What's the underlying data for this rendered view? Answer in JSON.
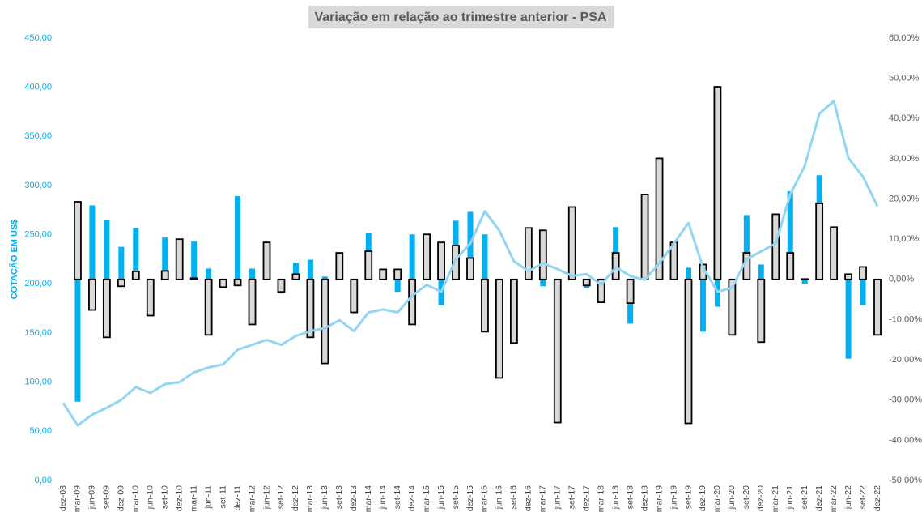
{
  "chart_data": {
    "type": "bar",
    "title": "Variação em relação ao trimestre anterior - PSA",
    "ylabel": "COTAÇÃO EM US$",
    "categories": [
      "dez-08",
      "mar-09",
      "jun-09",
      "set-09",
      "dez-09",
      "mar-10",
      "jun-10",
      "set-10",
      "dez-10",
      "mar-11",
      "jun-11",
      "set-11",
      "dez-11",
      "mar-12",
      "jun-12",
      "set-12",
      "dez-12",
      "mar-13",
      "jun-13",
      "set-13",
      "dez-13",
      "mar-14",
      "jun-14",
      "set-14",
      "dez-14",
      "mar-15",
      "jun-15",
      "set-15",
      "dez-15",
      "mar-16",
      "jun-16",
      "set-16",
      "dez-16",
      "mar-17",
      "jun-17",
      "set-17",
      "dez-17",
      "mar-18",
      "jun-18",
      "set-18",
      "dez-18",
      "mar-19",
      "jun-19",
      "set-19",
      "dez-19",
      "mar-20",
      "jun-20",
      "set-20",
      "dez-20",
      "mar-21",
      "jun-21",
      "set-21",
      "dez-21",
      "mar-22",
      "jun-22",
      "set-22",
      "dez-22"
    ],
    "series": [
      {
        "type": "bar",
        "axis": "y2",
        "color": "#00b0f0",
        "values": [
          null,
          -30.4,
          18.4,
          14.8,
          8.1,
          12.8,
          -4.5,
          10.4,
          4.7,
          9.4,
          2.7,
          -1.9,
          20.7,
          2.7,
          4.5,
          -3.5,
          4.1,
          4.9,
          0.7,
          4.7,
          -6.6,
          11.6,
          1.9,
          -3.1,
          11.2,
          5.5,
          -6.4,
          14.6,
          16.8,
          11.2,
          -7.0,
          -12.6,
          3.0,
          -1.7,
          -4.5,
          2.5,
          -2.1,
          -1.9,
          13.0,
          -11.0,
          1.0,
          7.6,
          9.2,
          2.9,
          -13.0,
          -6.8,
          -3.3,
          16.0,
          3.7,
          6.8,
          21.9,
          -1.1,
          25.9,
          4.1,
          -19.7,
          -6.4,
          -4.3
        ]
      },
      {
        "type": "bar",
        "axis": "y2",
        "color": "#d9d9d9",
        "edgecolor": "#000000",
        "values": [
          null,
          19.3,
          -7.6,
          -14.4,
          -1.7,
          2.0,
          -9.0,
          2.1,
          10.0,
          0.3,
          -13.8,
          -1.9,
          -1.5,
          -11.2,
          9.2,
          -3.1,
          1.3,
          -14.4,
          -20.9,
          6.6,
          -8.2,
          7.0,
          2.5,
          2.5,
          -11.2,
          11.2,
          9.2,
          8.4,
          5.3,
          -13.0,
          -24.5,
          -15.8,
          12.8,
          12.2,
          -35.6,
          18.0,
          -1.5,
          -5.7,
          6.6,
          -5.9,
          21.1,
          30.1,
          9.2,
          -35.8,
          3.7,
          47.9,
          -13.8,
          6.6,
          -15.6,
          16.2,
          6.6,
          0.1,
          18.9,
          13.0,
          1.3,
          3.1,
          -13.8
        ]
      },
      {
        "type": "line",
        "axis": "y",
        "color": "#92d5f3",
        "values": [
          79,
          56,
          67,
          74,
          82,
          95,
          89,
          98,
          100,
          110,
          115,
          118,
          133,
          138,
          143,
          138,
          147,
          152,
          155,
          163,
          152,
          171,
          174,
          171,
          188,
          199,
          192,
          225,
          241,
          274,
          254,
          223,
          213,
          221,
          215,
          208,
          210,
          199,
          217,
          208,
          204,
          221,
          241,
          262,
          217,
          192,
          196,
          225,
          233,
          241,
          291,
          320,
          373,
          386,
          328,
          309,
          279
        ]
      }
    ],
    "ylim": [
      0,
      450
    ],
    "yticks": [
      {
        "value": 0,
        "label": "0,00"
      },
      {
        "value": 50,
        "label": "50,00"
      },
      {
        "value": 100,
        "label": "100,00"
      },
      {
        "value": 150,
        "label": "150,00"
      },
      {
        "value": 200,
        "label": "200,00"
      },
      {
        "value": 250,
        "label": "250,00"
      },
      {
        "value": 300,
        "label": "300,00"
      },
      {
        "value": 350,
        "label": "350,00"
      },
      {
        "value": 400,
        "label": "400,00"
      },
      {
        "value": 450,
        "label": "450,00"
      }
    ],
    "y2lim": [
      -50,
      60
    ],
    "y2ticks": [
      {
        "value": -50,
        "label": "-50,00%"
      },
      {
        "value": -40,
        "label": "-40,00%"
      },
      {
        "value": -30,
        "label": "-30,00%"
      },
      {
        "value": -20,
        "label": "-20,00%"
      },
      {
        "value": -10,
        "label": "-10,00%"
      },
      {
        "value": 0,
        "label": "0,00%"
      },
      {
        "value": 10,
        "label": "10,00%"
      },
      {
        "value": 20,
        "label": "20,00%"
      },
      {
        "value": 30,
        "label": "30,00%"
      },
      {
        "value": 40,
        "label": "40,00%"
      },
      {
        "value": 50,
        "label": "50,00%"
      },
      {
        "value": 60,
        "label": "60,00%"
      }
    ],
    "grid": false
  }
}
